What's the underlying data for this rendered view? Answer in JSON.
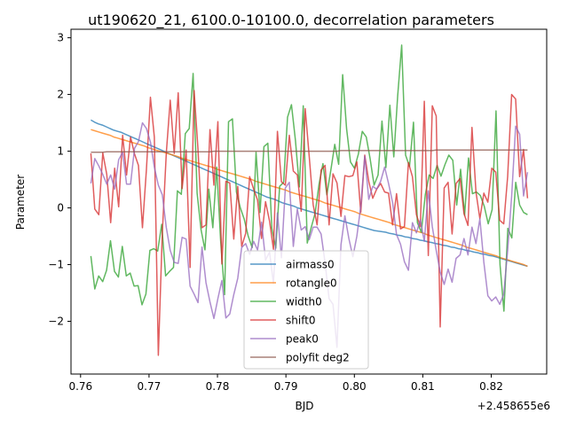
{
  "chart_data": {
    "type": "line",
    "title": "ut190620_21, 6100.0-10100.0, decorrelation parameters",
    "xlabel": "BJD",
    "ylabel": "Parameter",
    "x_offset_label": "+2.458655e6",
    "xlim": [
      0.7586,
      0.8281
    ],
    "ylim": [
      -2.93,
      3.15
    ],
    "xticks": [
      0.76,
      0.77,
      0.78,
      0.79,
      0.8,
      0.81,
      0.82
    ],
    "xtick_labels": [
      "0.76",
      "0.77",
      "0.78",
      "0.79",
      "0.80",
      "0.81",
      "0.82"
    ],
    "yticks": [
      -2,
      -1,
      0,
      1,
      2,
      3
    ],
    "ytick_labels": [
      "−2",
      "−1",
      "0",
      "1",
      "2",
      "3"
    ],
    "grid": false,
    "legend_position": "lower center",
    "x_start": 0.7615,
    "x_end": 0.8253,
    "series": [
      {
        "name": "airmass0",
        "color": "#1f77b4",
        "values": [
          1.55,
          1.51,
          1.48,
          1.46,
          1.43,
          1.4,
          1.37,
          1.35,
          1.33,
          1.3,
          1.27,
          1.24,
          1.21,
          1.18,
          1.15,
          1.12,
          1.09,
          1.06,
          1.03,
          1.0,
          0.97,
          0.94,
          0.91,
          0.88,
          0.85,
          0.82,
          0.79,
          0.76,
          0.73,
          0.7,
          0.67,
          0.64,
          0.61,
          0.58,
          0.55,
          0.52,
          0.49,
          0.46,
          0.43,
          0.4,
          0.37,
          0.34,
          0.31,
          0.28,
          0.25,
          0.22,
          0.19,
          0.17,
          0.15,
          0.12,
          0.09,
          0.07,
          0.05,
          0.03,
          0.0,
          -0.02,
          -0.04,
          -0.06,
          -0.08,
          -0.1,
          -0.12,
          -0.14,
          -0.16,
          -0.18,
          -0.2,
          -0.22,
          -0.24,
          -0.26,
          -0.28,
          -0.3,
          -0.32,
          -0.34,
          -0.36,
          -0.38,
          -0.4,
          -0.41,
          -0.42,
          -0.43,
          -0.45,
          -0.46,
          -0.48,
          -0.49,
          -0.51,
          -0.52,
          -0.54,
          -0.55,
          -0.57,
          -0.58,
          -0.6,
          -0.61,
          -0.63,
          -0.64,
          -0.66,
          -0.67,
          -0.69,
          -0.7,
          -0.72,
          -0.73,
          -0.75,
          -0.76,
          -0.78,
          -0.79,
          -0.81,
          -0.82,
          -0.84,
          -0.85,
          -0.87,
          -0.89,
          -0.91,
          -0.93,
          -0.95,
          -0.97,
          -0.99,
          -1.01,
          -1.03
        ]
      },
      {
        "name": "rotangle0",
        "color": "#ff7f0e",
        "values": [
          1.38,
          1.36,
          1.34,
          1.32,
          1.3,
          1.28,
          1.25,
          1.23,
          1.21,
          1.19,
          1.17,
          1.15,
          1.13,
          1.11,
          1.09,
          1.06,
          1.04,
          1.02,
          1.0,
          0.98,
          0.96,
          0.94,
          0.92,
          0.9,
          0.87,
          0.85,
          0.83,
          0.81,
          0.79,
          0.77,
          0.75,
          0.73,
          0.71,
          0.68,
          0.66,
          0.64,
          0.62,
          0.6,
          0.58,
          0.56,
          0.54,
          0.52,
          0.5,
          0.47,
          0.45,
          0.43,
          0.41,
          0.39,
          0.37,
          0.35,
          0.33,
          0.31,
          0.28,
          0.26,
          0.24,
          0.22,
          0.2,
          0.18,
          0.16,
          0.14,
          0.12,
          0.09,
          0.07,
          0.05,
          0.03,
          0.01,
          -0.01,
          -0.03,
          -0.05,
          -0.07,
          -0.1,
          -0.12,
          -0.14,
          -0.16,
          -0.18,
          -0.2,
          -0.22,
          -0.24,
          -0.26,
          -0.29,
          -0.31,
          -0.33,
          -0.35,
          -0.37,
          -0.39,
          -0.41,
          -0.43,
          -0.45,
          -0.48,
          -0.5,
          -0.52,
          -0.54,
          -0.56,
          -0.58,
          -0.6,
          -0.62,
          -0.64,
          -0.66,
          -0.69,
          -0.71,
          -0.73,
          -0.75,
          -0.77,
          -0.79,
          -0.81,
          -0.83,
          -0.85,
          -0.88,
          -0.9,
          -0.92,
          -0.94,
          -0.96,
          -0.98,
          -1.0,
          -1.03
        ]
      },
      {
        "name": "width0",
        "color": "#2ca02c",
        "values": [
          -0.85,
          -1.43,
          -1.2,
          -1.3,
          -1.1,
          -0.58,
          -1.12,
          -1.22,
          -0.68,
          -1.2,
          -1.15,
          -1.38,
          -1.37,
          -1.71,
          -1.52,
          -0.75,
          -0.72,
          -0.76,
          -0.29,
          -1.2,
          -1.12,
          -1.05,
          0.3,
          0.24,
          1.31,
          1.4,
          2.37,
          0.26,
          -0.38,
          -0.74,
          0.33,
          -0.35,
          0.72,
          -0.58,
          -1.53,
          1.52,
          1.57,
          0.28,
          0.0,
          -0.2,
          -0.5,
          -0.7,
          0.98,
          -0.08,
          1.08,
          1.14,
          -0.36,
          -0.71,
          0.38,
          0.45,
          1.6,
          1.82,
          1.19,
          0.37,
          1.8,
          -0.62,
          -0.35,
          -0.1,
          0.42,
          0.78,
          0.23,
          0.67,
          1.12,
          0.77,
          2.35,
          1.4,
          0.81,
          0.7,
          0.95,
          1.35,
          1.25,
          0.86,
          0.4,
          0.58,
          1.53,
          0.71,
          1.81,
          0.9,
          1.98,
          2.87,
          0.93,
          0.73,
          1.51,
          -0.26,
          -0.43,
          0.23,
          0.58,
          0.52,
          0.75,
          0.56,
          0.76,
          0.93,
          0.84,
          0.05,
          0.68,
          -0.13,
          0.88,
          0.25,
          0.28,
          0.22,
          0.03,
          -0.28,
          -0.03,
          1.71,
          -1.0,
          -1.82,
          -0.36,
          -0.53,
          0.45,
          0.05,
          -0.08,
          -0.12
        ]
      },
      {
        "name": "shift0",
        "color": "#d62728",
        "values": [
          0.96,
          -0.02,
          -0.12,
          0.97,
          0.59,
          -0.26,
          0.7,
          0.02,
          1.28,
          0.58,
          1.25,
          0.95,
          0.75,
          -0.35,
          0.68,
          1.95,
          1.25,
          -2.6,
          -0.44,
          0.97,
          1.9,
          0.96,
          2.03,
          0.34,
          1.02,
          -1.05,
          2.07,
          1.03,
          -0.35,
          -0.3,
          1.38,
          0.4,
          1.52,
          -0.99,
          0.47,
          0.44,
          -0.55,
          0.38,
          -0.68,
          -0.45,
          0.55,
          0.33,
          0.14,
          -0.54,
          0.11,
          -0.23,
          -0.73,
          1.35,
          0.46,
          0.4,
          1.28,
          0.65,
          0.58,
          -0.06,
          1.75,
          0.91,
          0.05,
          -0.3,
          0.67,
          0.75,
          -0.3,
          0.6,
          0.44,
          -0.15,
          0.57,
          0.55,
          0.57,
          0.81,
          -0.08,
          0.93,
          0.47,
          0.17,
          0.33,
          0.43,
          0.28,
          0.26,
          -0.3,
          0.25,
          -0.37,
          -0.33,
          0.8,
          0.55,
          -0.12,
          -0.33,
          1.88,
          -0.84,
          1.8,
          1.62,
          -2.1,
          0.35,
          0.45,
          -0.46,
          0.43,
          0.52,
          -0.1,
          -0.31,
          1.42,
          0.28,
          -0.19,
          0.26,
          0.1,
          0.7,
          0.63,
          -0.22,
          -0.28,
          0.55,
          2.0,
          1.92,
          0.55,
          1.03,
          0.17
        ]
      },
      {
        "name": "peak0",
        "color": "#9467bd",
        "values": [
          0.43,
          0.87,
          0.74,
          0.59,
          0.42,
          0.58,
          0.33,
          0.85,
          0.98,
          0.42,
          0.42,
          1.05,
          1.17,
          1.5,
          1.4,
          1.16,
          0.72,
          0.4,
          0.23,
          -0.35,
          -0.75,
          -0.96,
          -0.98,
          -0.52,
          -0.55,
          -1.38,
          -1.52,
          -1.67,
          -0.69,
          -1.32,
          -1.66,
          -1.95,
          -1.6,
          -1.28,
          -1.94,
          -1.87,
          -1.53,
          -1.24,
          -0.7,
          -0.63,
          -0.82,
          -0.59,
          -0.74,
          -0.25,
          -0.92,
          -0.78,
          -1.33,
          -0.09,
          -0.88,
          0.35,
          0.45,
          -0.68,
          -0.02,
          -0.39,
          -0.33,
          -0.56,
          -0.34,
          -0.34,
          -0.46,
          -0.97,
          -1.6,
          -1.7,
          -2.46,
          -0.65,
          -0.14,
          -0.54,
          -0.86,
          -0.5,
          0.03,
          0.91,
          0.15,
          0.38,
          0.33,
          0.47,
          0.72,
          0.43,
          0.1,
          -0.47,
          -0.64,
          -0.95,
          -1.1,
          -0.26,
          -0.44,
          -0.21,
          -0.59,
          0.3,
          -0.33,
          -0.75,
          -1.13,
          -1.35,
          -1.08,
          -1.31,
          -0.89,
          -0.83,
          -0.54,
          -0.83,
          -0.34,
          -0.63,
          -0.19,
          -0.96,
          -1.55,
          -1.64,
          -1.57,
          -1.7,
          -1.52,
          -0.75,
          0.2,
          1.44,
          1.3,
          0.21,
          0.63
        ]
      },
      {
        "name": "polyfit deg2",
        "color": "#8c564b",
        "values": [
          0.98,
          0.98,
          0.98,
          0.98,
          0.99,
          0.99,
          0.99,
          0.99,
          0.99,
          0.99,
          0.99,
          0.99,
          0.99,
          0.99,
          0.99,
          0.99,
          0.99,
          0.99,
          0.99,
          0.99,
          0.99,
          0.99,
          0.99,
          0.99,
          0.99,
          0.99,
          0.99,
          0.99,
          0.99,
          0.99,
          0.99,
          1.0,
          1.0,
          1.0,
          1.0,
          1.0,
          1.0,
          1.0,
          1.0,
          1.0,
          1.0,
          1.0,
          1.0,
          1.0,
          1.0,
          1.0,
          1.0,
          1.0,
          1.0,
          1.0,
          1.0,
          1.0,
          1.0,
          1.0,
          1.0,
          1.0,
          1.0,
          1.0,
          1.0,
          1.0,
          1.0,
          1.0,
          1.0,
          1.01,
          1.01,
          1.01,
          1.01,
          1.01,
          1.01,
          1.01,
          1.01,
          1.01,
          1.01,
          1.01,
          1.01,
          1.01,
          1.01,
          1.01,
          1.01,
          1.01,
          1.01,
          1.01,
          1.01,
          1.01,
          1.01,
          1.01,
          1.01,
          1.02,
          1.02,
          1.02,
          1.02,
          1.02,
          1.02,
          1.02,
          1.02,
          1.02,
          1.02,
          1.02,
          1.02,
          1.02,
          1.02,
          1.02,
          1.02,
          1.02,
          1.02,
          1.02,
          1.02,
          1.02,
          1.02,
          1.02,
          1.02
        ]
      }
    ]
  }
}
